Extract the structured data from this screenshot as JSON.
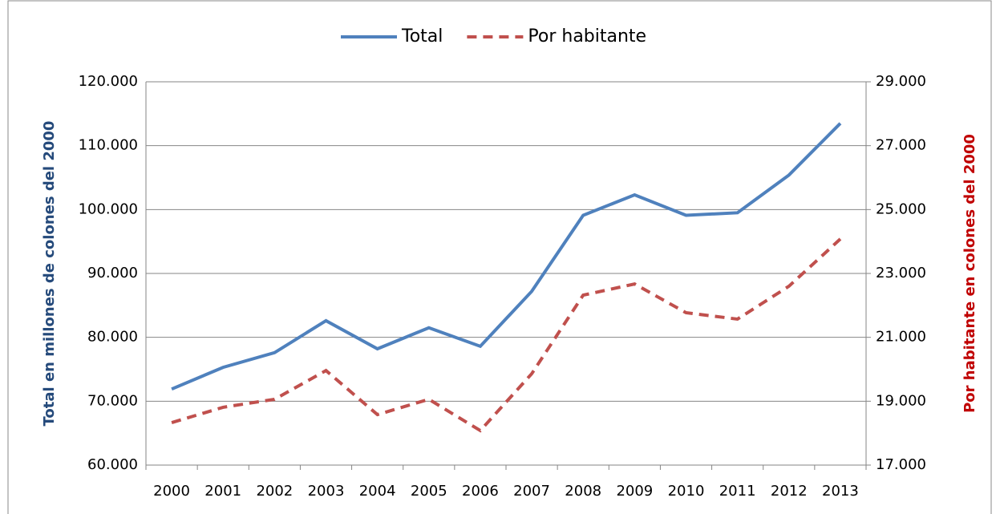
{
  "chart_data": {
    "type": "line",
    "categories": [
      "2000",
      "2001",
      "2002",
      "2003",
      "2004",
      "2005",
      "2006",
      "2007",
      "2008",
      "2009",
      "2010",
      "2011",
      "2012",
      "2013"
    ],
    "series": [
      {
        "name": "Total",
        "color": "#4f81bd",
        "dash": false,
        "axis": "y",
        "values": [
          71900,
          75300,
          77600,
          82600,
          78200,
          81500,
          78600,
          87200,
          99100,
          102300,
          99100,
          99500,
          105400,
          113500
        ]
      },
      {
        "name": "Por habitante",
        "color": "#c0504d",
        "dash": true,
        "axis": "y2",
        "values": [
          18330,
          18810,
          19060,
          19960,
          18580,
          19060,
          18080,
          19860,
          22320,
          22670,
          21770,
          21570,
          22600,
          24080
        ]
      }
    ],
    "ylabel": "Total en millones de colones del 2000",
    "y2label": "Por habitante en colones del 2000",
    "ylim": [
      60000,
      120000
    ],
    "yticks": [
      {
        "value": 60000,
        "label": "60.000"
      },
      {
        "value": 70000,
        "label": "70.000"
      },
      {
        "value": 80000,
        "label": "80.000"
      },
      {
        "value": 90000,
        "label": "90.000"
      },
      {
        "value": 100000,
        "label": "100.000"
      },
      {
        "value": 110000,
        "label": "110.000"
      },
      {
        "value": 120000,
        "label": "120.000"
      }
    ],
    "y2lim": [
      17000,
      29000
    ],
    "y2ticks": [
      {
        "value": 17000,
        "label": "17.000"
      },
      {
        "value": 19000,
        "label": "19.000"
      },
      {
        "value": 21000,
        "label": "21.000"
      },
      {
        "value": 23000,
        "label": "23.000"
      },
      {
        "value": 25000,
        "label": "25.000"
      },
      {
        "value": 27000,
        "label": "27.000"
      },
      {
        "value": 29000,
        "label": "29.000"
      }
    ],
    "ylabel_color": "#254a7b",
    "y2label_color": "#c00000",
    "grid": true,
    "legend": "top"
  }
}
